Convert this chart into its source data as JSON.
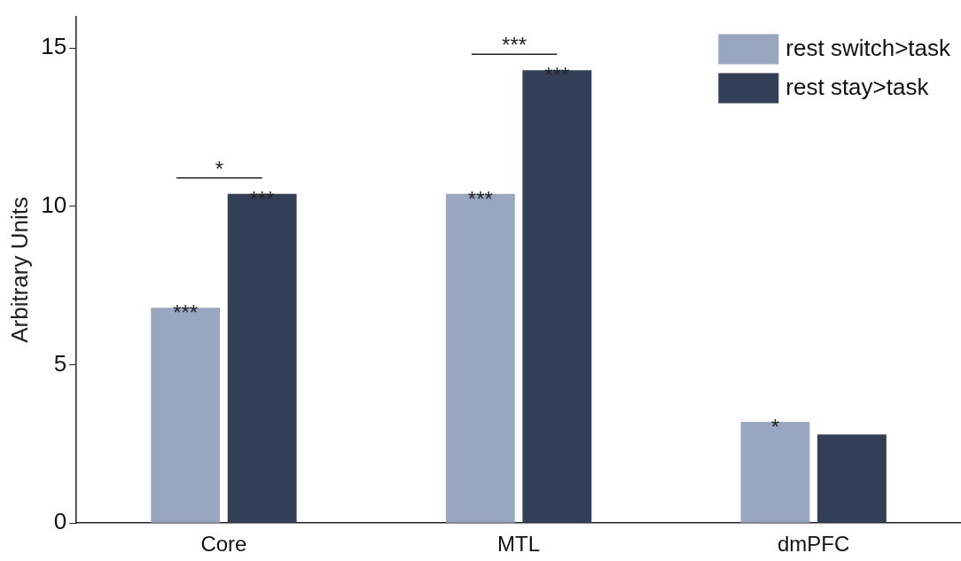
{
  "chart_data": {
    "type": "bar",
    "ylabel": "Arbitrary Units",
    "categories": [
      "Core",
      "MTL",
      "dmPFC"
    ],
    "series": [
      {
        "name": "rest switch>task",
        "color": "#98a6bf",
        "values": [
          6.8,
          10.4,
          3.2
        ],
        "value_labels": [
          "***",
          "***",
          "*"
        ]
      },
      {
        "name": "rest stay>task",
        "color": "#333f57",
        "values": [
          10.4,
          14.3,
          2.8
        ],
        "value_labels": [
          "***",
          "***",
          null
        ]
      }
    ],
    "ylim": [
      0,
      16
    ],
    "yticks": [
      0,
      5,
      10,
      15
    ],
    "legend": "top right",
    "annotations": [
      "*",
      "***"
    ]
  }
}
